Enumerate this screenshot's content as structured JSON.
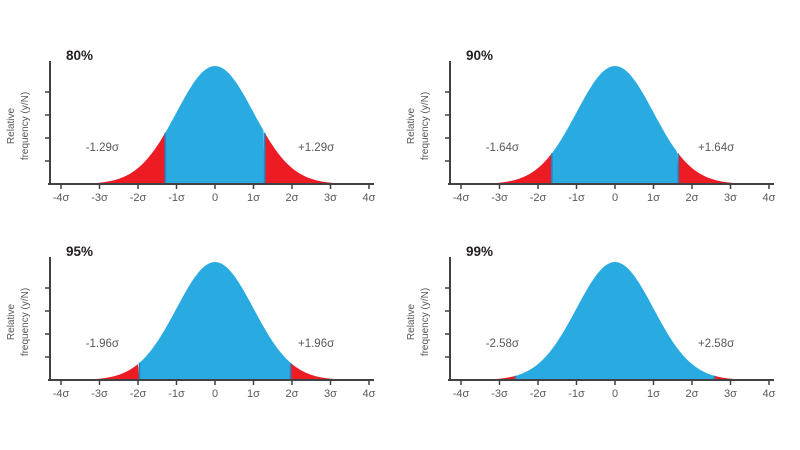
{
  "style": {
    "background": "#ffffff",
    "center_fill": "#29abe2",
    "tail_fill": "#ed1c24",
    "cutoff_edge": "#1d87c9",
    "axis_color": "#414042",
    "text_color": "#58595b",
    "title_color": "#231f20"
  },
  "chart_data": [
    {
      "type": "area",
      "title": "80%",
      "curve": "standard normal density",
      "xlim": [
        -4,
        4
      ],
      "x_ticks": [
        "-4σ",
        "-3σ",
        "-2σ",
        "-1σ",
        "0",
        "1σ",
        "2σ",
        "3σ",
        "4σ"
      ],
      "ylabel_line1": "Relative",
      "ylabel_line2": "frequency (y/N)",
      "cutoff_sigma": 1.29,
      "left_cutoff_label": "-1.29σ",
      "right_cutoff_label": "+1.29σ",
      "center_region": "blue area within ±1.29σ (80% of distribution)",
      "tail_region": "red tails beyond ±1.29σ"
    },
    {
      "type": "area",
      "title": "90%",
      "curve": "standard normal density",
      "xlim": [
        -4,
        4
      ],
      "x_ticks": [
        "-4σ",
        "-3σ",
        "-2σ",
        "-1σ",
        "0",
        "1σ",
        "2σ",
        "3σ",
        "4σ"
      ],
      "ylabel_line1": "Relative",
      "ylabel_line2": "frequency (y/N)",
      "cutoff_sigma": 1.64,
      "left_cutoff_label": "-1.64σ",
      "right_cutoff_label": "+1.64σ",
      "center_region": "blue area within ±1.64σ (90% of distribution)",
      "tail_region": "red tails beyond ±1.64σ"
    },
    {
      "type": "area",
      "title": "95%",
      "curve": "standard normal density",
      "xlim": [
        -4,
        4
      ],
      "x_ticks": [
        "-4σ",
        "-3σ",
        "-2σ",
        "-1σ",
        "0",
        "1σ",
        "2σ",
        "3σ",
        "4σ"
      ],
      "ylabel_line1": "Relative",
      "ylabel_line2": "frequency (y/N)",
      "cutoff_sigma": 1.96,
      "left_cutoff_label": "-1.96σ",
      "right_cutoff_label": "+1.96σ",
      "center_region": "blue area within ±1.96σ (95% of distribution)",
      "tail_region": "red tails beyond ±1.96σ"
    },
    {
      "type": "area",
      "title": "99%",
      "curve": "standard normal density",
      "xlim": [
        -4,
        4
      ],
      "x_ticks": [
        "-4σ",
        "-3σ",
        "-2σ",
        "-1σ",
        "0",
        "1σ",
        "2σ",
        "3σ",
        "4σ"
      ],
      "ylabel_line1": "Relative",
      "ylabel_line2": "frequency (y/N)",
      "cutoff_sigma": 2.58,
      "left_cutoff_label": "-2.58σ",
      "right_cutoff_label": "+2.58σ",
      "center_region": "blue area within ±2.58σ (99% of distribution)",
      "tail_region": "red tails beyond ±2.58σ"
    }
  ]
}
